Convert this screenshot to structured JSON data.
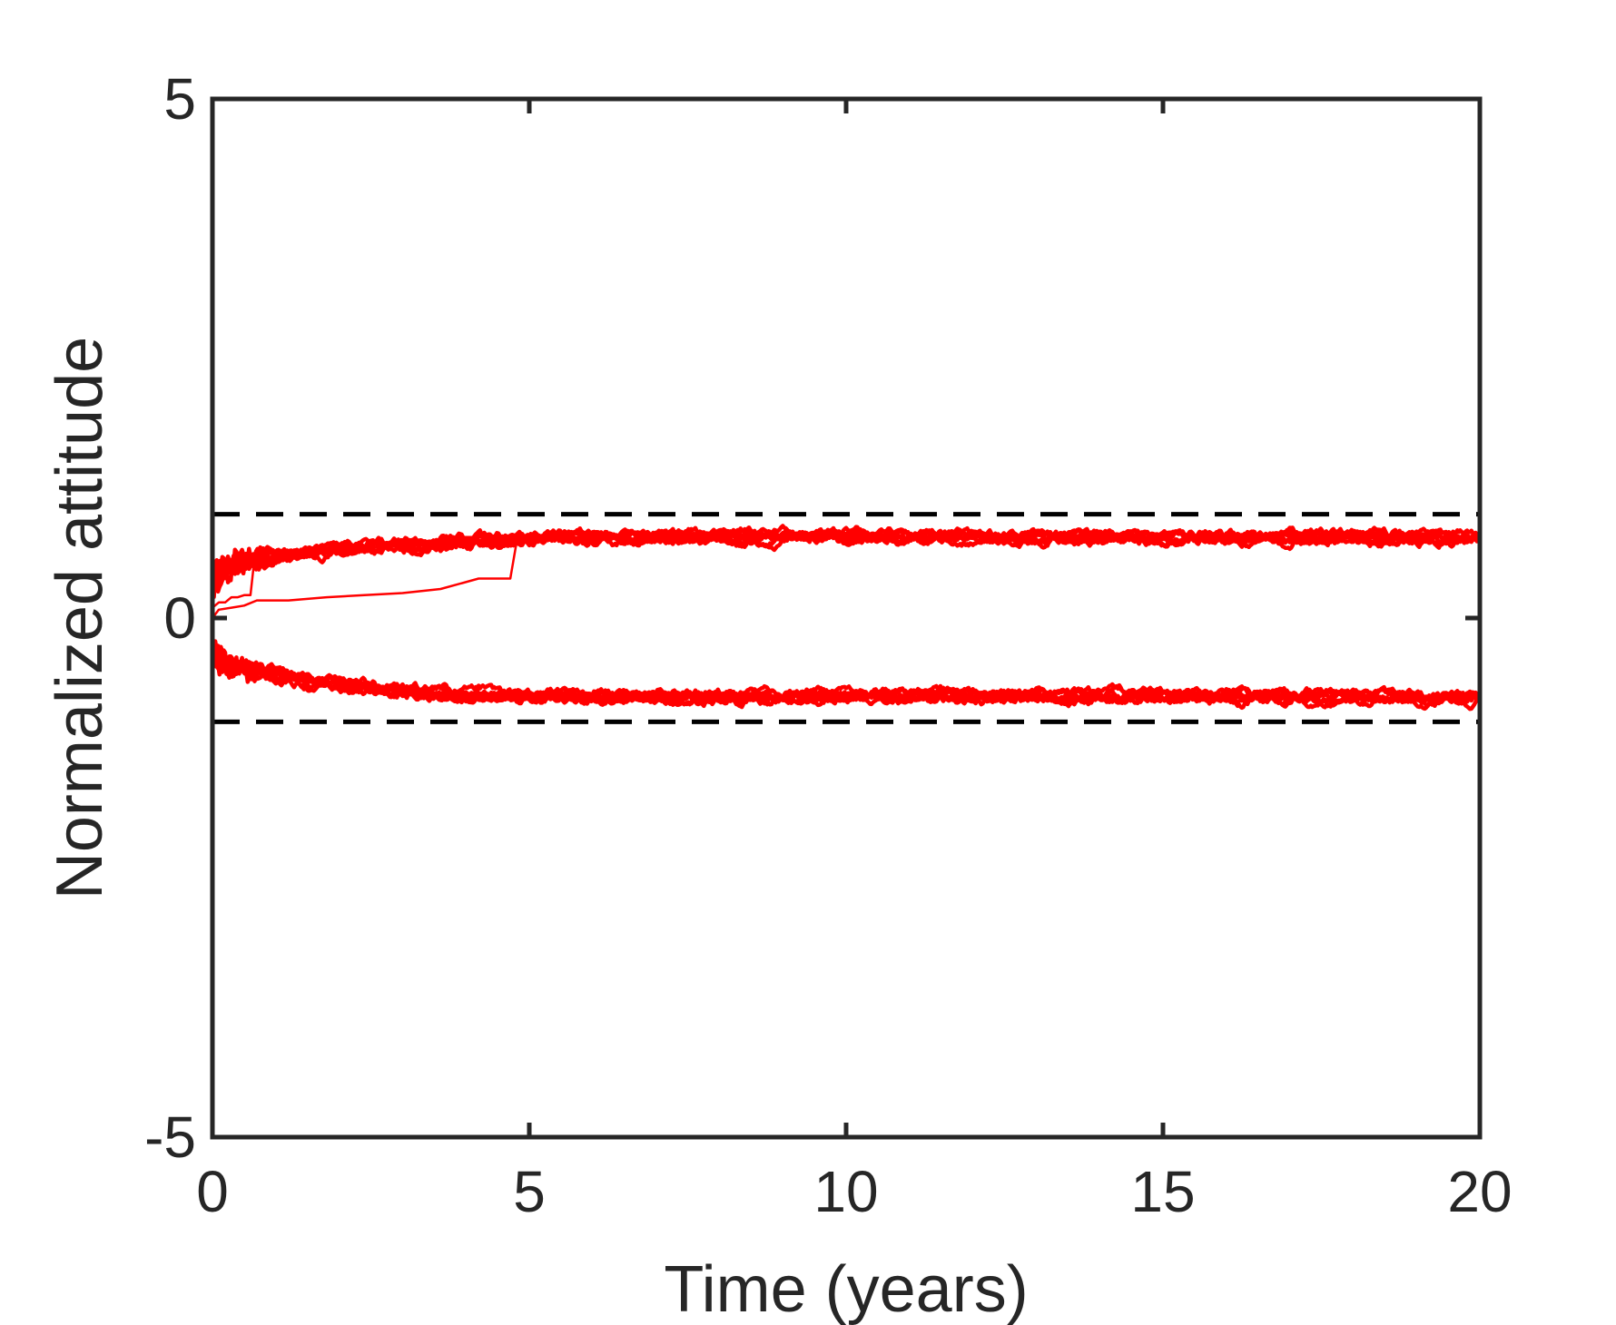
{
  "chart_data": {
    "type": "line",
    "xlabel": "Time (years)",
    "ylabel": "Normalized attitude",
    "xlim": [
      0,
      20
    ],
    "ylim": [
      -5,
      5
    ],
    "xticks": [
      0,
      5,
      10,
      15,
      20
    ],
    "yticks": [
      -5,
      0,
      5
    ],
    "xtick_labels": [
      "0",
      "5",
      "10",
      "15",
      "20"
    ],
    "ytick_labels": [
      "-5",
      "0",
      "5"
    ],
    "grid": false,
    "legend": "none",
    "colors": {
      "trace": "#ff0000",
      "reference": "#000000",
      "axes": "#262626"
    },
    "reference_lines": [
      {
        "y": 1,
        "style": "dashed"
      },
      {
        "y": -1,
        "style": "dashed"
      }
    ],
    "upper_band": {
      "x": [
        0,
        0.25,
        0.5,
        1,
        1.5,
        2,
        3,
        4,
        5,
        6,
        8,
        10,
        12,
        14,
        16,
        18,
        20
      ],
      "y": [
        0.35,
        0.48,
        0.55,
        0.6,
        0.63,
        0.66,
        0.7,
        0.74,
        0.77,
        0.78,
        0.78,
        0.78,
        0.78,
        0.77,
        0.78,
        0.78,
        0.77
      ]
    },
    "lower_band": {
      "x": [
        0,
        0.25,
        0.5,
        1,
        1.5,
        2,
        3,
        4,
        5,
        6,
        8,
        10,
        12,
        14,
        16,
        18,
        20
      ],
      "y": [
        -0.35,
        -0.45,
        -0.5,
        -0.55,
        -0.6,
        -0.65,
        -0.7,
        -0.74,
        -0.75,
        -0.76,
        -0.76,
        -0.75,
        -0.75,
        -0.75,
        -0.76,
        -0.76,
        -0.77
      ]
    },
    "late_trajectories": [
      {
        "x": [
          0,
          0.1,
          0.2,
          0.3,
          0.4,
          0.5,
          0.6,
          0.65,
          0.7,
          1.0,
          1.5,
          2.0,
          2.5,
          3.0,
          3.5,
          3.8,
          4.2,
          4.6,
          4.8,
          4.9,
          5.2
        ],
        "y": [
          0.1,
          0.15,
          0.15,
          0.2,
          0.2,
          0.22,
          0.22,
          0.5,
          0.55,
          0.6,
          0.62,
          0.65,
          0.68,
          0.7,
          0.72,
          0.78,
          0.78,
          0.78,
          0.78,
          0.78,
          0.77
        ]
      },
      {
        "x": [
          0,
          0.1,
          0.3,
          0.5,
          0.7,
          1.2,
          1.8,
          2.4,
          3.0,
          3.6,
          4.2,
          4.7,
          4.8,
          5.0
        ],
        "y": [
          0.0,
          0.08,
          0.1,
          0.12,
          0.17,
          0.17,
          0.2,
          0.22,
          0.24,
          0.28,
          0.38,
          0.38,
          0.73,
          0.77
        ]
      }
    ]
  }
}
